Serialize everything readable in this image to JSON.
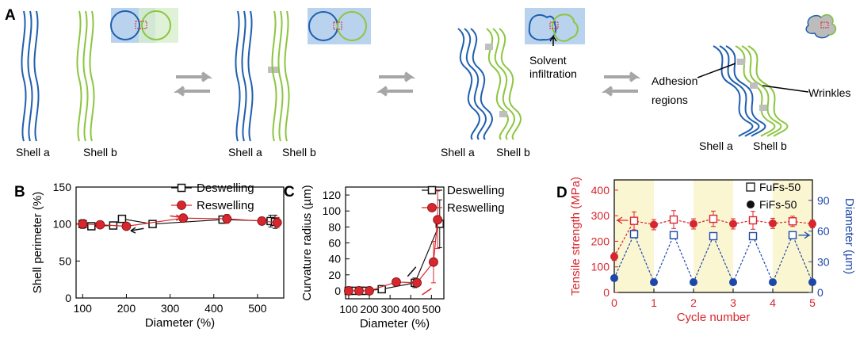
{
  "panelA": {
    "label": "A",
    "shell_a": "Shell a",
    "shell_b": "Shell b",
    "solvent": [
      "Solvent",
      "infiltration"
    ],
    "adhesion": [
      "Adhesion",
      "regions"
    ],
    "wrinkles": "Wrinkles",
    "colors": {
      "shell_a": "#1f5fae",
      "shell_b": "#8cc63f",
      "region": "#b9d3ee",
      "adhesion": "#bfbfbf"
    }
  },
  "chart_data": [
    {
      "panel": "B",
      "type": "scatter",
      "xlabel": "Diameter (%)",
      "ylabel": "Shell perimeter (%)",
      "xlim": [
        85,
        560
      ],
      "ylim": [
        0,
        150
      ],
      "xticks": [
        100,
        200,
        300,
        400,
        500
      ],
      "yticks": [
        0,
        50,
        100,
        150
      ],
      "legend_position": "top-right",
      "series": [
        {
          "name": "Deswelling",
          "color": "#111111",
          "marker": "open-square",
          "x": [
            100,
            120,
            170,
            190,
            260,
            420,
            530,
            540
          ],
          "y": [
            100,
            97,
            98,
            107,
            100,
            106,
            104,
            103
          ],
          "err": [
            6,
            4,
            4,
            5,
            4,
            5,
            8,
            9
          ]
        },
        {
          "name": "Reswelling",
          "color": "#d7262e",
          "marker": "filled-circle",
          "x": [
            100,
            140,
            200,
            330,
            430,
            510,
            545
          ],
          "y": [
            100,
            99,
            97,
            108,
            107,
            104,
            102
          ],
          "err": [
            5,
            3,
            3,
            4,
            6,
            5,
            7
          ]
        }
      ]
    },
    {
      "panel": "C",
      "type": "scatter",
      "xlabel": "Diameter (%)",
      "ylabel": "Curvature radius (µm)",
      "xlim": [
        85,
        560
      ],
      "ylim": [
        -10,
        130
      ],
      "xticks": [
        100,
        200,
        300,
        400,
        500
      ],
      "yticks": [
        0,
        20,
        40,
        60,
        80,
        100,
        120
      ],
      "legend_position": "top-right",
      "series": [
        {
          "name": "Deswelling",
          "color": "#111111",
          "marker": "open-square",
          "x": [
            100,
            120,
            160,
            180,
            260,
            420,
            540
          ],
          "y": [
            0,
            0,
            0,
            0,
            2,
            10,
            84
          ],
          "err": [
            2,
            2,
            1,
            1,
            2,
            6,
            30
          ]
        },
        {
          "name": "Reswelling",
          "color": "#d7262e",
          "marker": "filled-circle",
          "x": [
            100,
            150,
            200,
            330,
            430,
            510,
            530
          ],
          "y": [
            0,
            0,
            0,
            11,
            10,
            36,
            89
          ],
          "err": [
            1,
            1,
            1,
            2,
            4,
            26,
            36
          ]
        }
      ]
    },
    {
      "panel": "D",
      "type": "line",
      "xlabel": "Cycle number",
      "ylabel_left": "Tensile strength (MPa)",
      "ylabel_right": "Diameter (µm)",
      "xlim": [
        0,
        5
      ],
      "ylim_left": [
        0,
        440
      ],
      "ylim_right": [
        0,
        110
      ],
      "xticks": [
        0,
        1,
        2,
        3,
        4,
        5
      ],
      "yticks_left": [
        0,
        100,
        200,
        300,
        400
      ],
      "yticks_right": [
        0,
        30,
        60,
        90
      ],
      "legend_position": "top-right",
      "shaded_cycles": [
        [
          0,
          1
        ],
        [
          2,
          3
        ],
        [
          4,
          5
        ]
      ],
      "shade_color": "#fbf6d2",
      "series": [
        {
          "name": "FuFs-50",
          "axis": "left",
          "color": "#d7262e",
          "marker_note": "open-square",
          "x": [
            0,
            0.5,
            1,
            1.5,
            2,
            2.5,
            3,
            3.5,
            4,
            4.5,
            5
          ],
          "y": [
            140,
            280,
            265,
            285,
            268,
            288,
            268,
            282,
            270,
            278,
            268
          ],
          "err": [
            15,
            35,
            20,
            35,
            20,
            30,
            20,
            35,
            20,
            20,
            15
          ]
        },
        {
          "name": "FiFs-50",
          "axis": "right",
          "color": "#1d47a8",
          "marker_note": "filled-circle",
          "x": [
            0,
            0.5,
            1,
            1.5,
            2,
            2.5,
            3,
            3.5,
            4,
            4.5,
            5
          ],
          "y": [
            14,
            57,
            10,
            56,
            10,
            55,
            10,
            55,
            10,
            56,
            10
          ],
          "err": [
            0,
            2,
            0,
            2,
            0,
            2,
            0,
            2,
            0,
            2,
            0
          ]
        }
      ]
    }
  ]
}
